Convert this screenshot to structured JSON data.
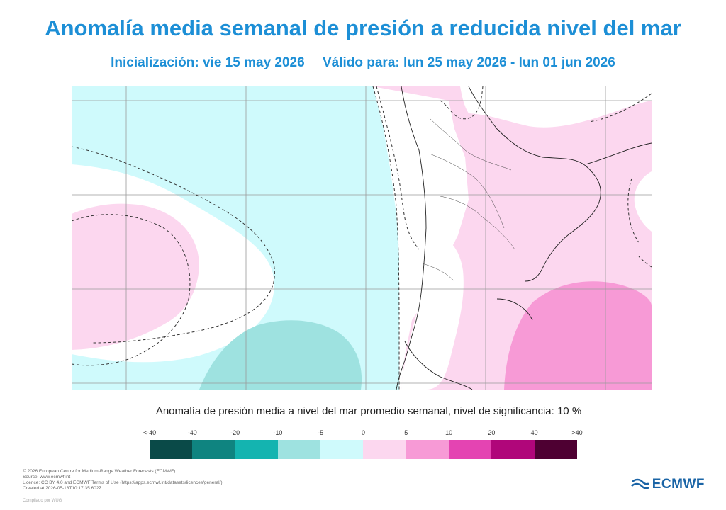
{
  "header": {
    "title": "Anomalía media semanal de presión a reducida nivel del mar",
    "init": "Inicialización: vie 15 may 2026",
    "valid": "Válido para: lun 25 may 2026 - lun 01 jun 2026"
  },
  "legend": {
    "title": "Anomalía de presión media a nivel del mar promedio semanal, nivel de significancia: 10 %",
    "labels": [
      "<-40",
      "-40",
      "-20",
      "-10",
      "-5",
      "0",
      "5",
      "10",
      "20",
      "40",
      ">40"
    ],
    "colors": [
      "#0a4a48",
      "#0f8480",
      "#14b4b0",
      "#9ee2e0",
      "#cffafc",
      "#fcd7ef",
      "#f79ad6",
      "#e444b2",
      "#b0067a",
      "#4e0032"
    ]
  },
  "footer": {
    "lines": [
      "© 2026 European Centre for Medium-Range Weather Forecasts (ECMWF)",
      "Source: www.ecmwf.int",
      "Licence: CC BY 4.0 and ECMWF Terms of Use (https://apps.ecmwf.int/datasets/licences/general/)",
      "Created at 2026-05-18T10:17:35.602Z"
    ],
    "compiled": "Compilado por WUG",
    "logo": "ECMWF"
  }
}
